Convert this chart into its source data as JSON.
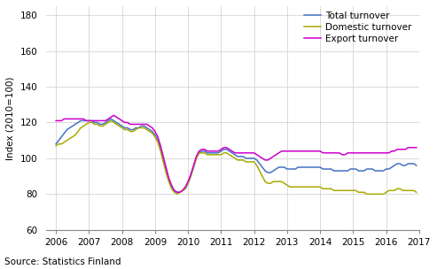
{
  "title": "",
  "ylabel": "Index (2010=100)",
  "source": "Source: Statistics Finland",
  "xlim": [
    2005.7,
    2017.0
  ],
  "ylim": [
    60,
    185
  ],
  "yticks": [
    60,
    80,
    100,
    120,
    140,
    160,
    180
  ],
  "xticks": [
    2006,
    2007,
    2008,
    2009,
    2010,
    2011,
    2012,
    2013,
    2014,
    2015,
    2016,
    2017
  ],
  "colors": {
    "total": "#4472C4",
    "domestic": "#AAAA00",
    "export": "#CC00CC"
  },
  "legend": [
    "Total turnover",
    "Domestic turnover",
    "Export turnover"
  ],
  "n_months": 132,
  "start_year": 2006.0,
  "end_year": 2016.917,
  "total_turnover": [
    108,
    110,
    112,
    114,
    116,
    117,
    118,
    119,
    120,
    121,
    121,
    121,
    121,
    121,
    120,
    120,
    119,
    119,
    120,
    121,
    122,
    121,
    120,
    119,
    118,
    117,
    117,
    116,
    116,
    117,
    117,
    118,
    118,
    117,
    116,
    115,
    113,
    110,
    105,
    99,
    93,
    88,
    84,
    82,
    81,
    81,
    82,
    83,
    86,
    90,
    95,
    100,
    103,
    104,
    104,
    103,
    103,
    103,
    103,
    103,
    104,
    105,
    105,
    104,
    103,
    102,
    101,
    101,
    101,
    100,
    100,
    100,
    100,
    99,
    97,
    95,
    93,
    92,
    92,
    93,
    94,
    95,
    95,
    95,
    94,
    94,
    94,
    94,
    95,
    95,
    95,
    95,
    95,
    95,
    95,
    95,
    95,
    94,
    94,
    94,
    94,
    93,
    93,
    93,
    93,
    93,
    93,
    94,
    94,
    94,
    93,
    93,
    93,
    94,
    94,
    94,
    93,
    93,
    93,
    93,
    94,
    94,
    95,
    96,
    97,
    97,
    96,
    96,
    97,
    97,
    97,
    96
  ],
  "domestic_turnover": [
    107,
    108,
    108,
    109,
    110,
    111,
    112,
    113,
    115,
    117,
    118,
    119,
    120,
    120,
    119,
    119,
    118,
    118,
    119,
    120,
    121,
    120,
    119,
    118,
    117,
    116,
    116,
    115,
    115,
    116,
    117,
    117,
    117,
    116,
    115,
    114,
    112,
    109,
    104,
    98,
    92,
    87,
    83,
    81,
    80,
    81,
    82,
    83,
    86,
    90,
    95,
    100,
    103,
    103,
    103,
    102,
    102,
    102,
    102,
    102,
    102,
    103,
    103,
    102,
    101,
    100,
    99,
    99,
    99,
    98,
    98,
    98,
    98,
    96,
    93,
    90,
    87,
    86,
    86,
    87,
    87,
    87,
    87,
    86,
    85,
    84,
    84,
    84,
    84,
    84,
    84,
    84,
    84,
    84,
    84,
    84,
    84,
    83,
    83,
    83,
    83,
    82,
    82,
    82,
    82,
    82,
    82,
    82,
    82,
    82,
    81,
    81,
    81,
    80,
    80,
    80,
    80,
    80,
    80,
    80,
    81,
    82,
    82,
    82,
    83,
    83,
    82,
    82,
    82,
    82,
    82,
    81
  ],
  "export_turnover": [
    121,
    121,
    121,
    122,
    122,
    122,
    122,
    122,
    122,
    122,
    122,
    121,
    121,
    121,
    121,
    121,
    121,
    121,
    121,
    122,
    123,
    124,
    123,
    122,
    121,
    120,
    120,
    119,
    119,
    119,
    119,
    119,
    119,
    119,
    118,
    117,
    115,
    112,
    107,
    101,
    95,
    89,
    85,
    82,
    81,
    81,
    82,
    84,
    87,
    91,
    96,
    101,
    104,
    105,
    105,
    104,
    104,
    104,
    104,
    104,
    105,
    106,
    106,
    105,
    104,
    103,
    103,
    103,
    103,
    103,
    103,
    103,
    103,
    102,
    101,
    100,
    99,
    99,
    100,
    101,
    102,
    103,
    104,
    104,
    104,
    104,
    104,
    104,
    104,
    104,
    104,
    104,
    104,
    104,
    104,
    104,
    104,
    103,
    103,
    103,
    103,
    103,
    103,
    103,
    102,
    102,
    103,
    103,
    103,
    103,
    103,
    103,
    103,
    103,
    103,
    103,
    103,
    103,
    103,
    103,
    103,
    103,
    104,
    104,
    105,
    105,
    105,
    105,
    106,
    106,
    106,
    106
  ]
}
